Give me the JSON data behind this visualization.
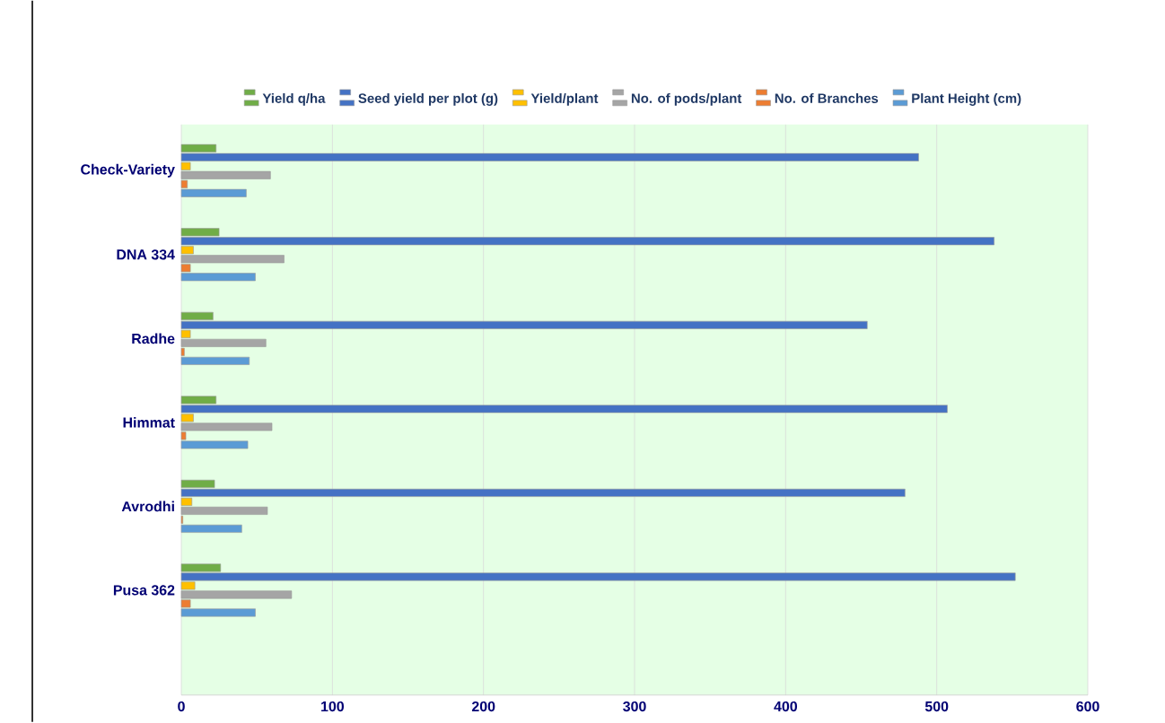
{
  "chart_data": {
    "type": "bar",
    "orientation": "horizontal",
    "categories": [
      "Check-Variety",
      "DNA 334",
      "Radhe",
      "Himmat",
      "Avrodhi",
      "Pusa 362"
    ],
    "series": [
      {
        "name": "Yield q/ha",
        "color": "#70ad47",
        "values": [
          23,
          25,
          21,
          23,
          22,
          26
        ]
      },
      {
        "name": "Seed yield per plot (g)",
        "color": "#4472c4",
        "values": [
          488,
          538,
          454,
          507,
          479,
          552
        ]
      },
      {
        "name": "Yield/plant",
        "color": "#ffc000",
        "values": [
          6,
          8,
          6,
          8,
          7,
          9
        ]
      },
      {
        "name": "No. of pods/plant",
        "color": "#a5a5a5",
        "values": [
          59,
          68,
          56,
          60,
          57,
          73
        ]
      },
      {
        "name": "No. of Branches",
        "color": "#ed7d31",
        "values": [
          4,
          6,
          2,
          3,
          1,
          6
        ]
      },
      {
        "name": "Plant Height (cm)",
        "color": "#5b9bd5",
        "values": [
          43,
          49,
          45,
          44,
          40,
          49
        ]
      }
    ],
    "xlim": [
      0,
      600
    ],
    "xticks": [
      0,
      100,
      200,
      300,
      400,
      500,
      600
    ],
    "grid": "x",
    "legend": "top"
  }
}
